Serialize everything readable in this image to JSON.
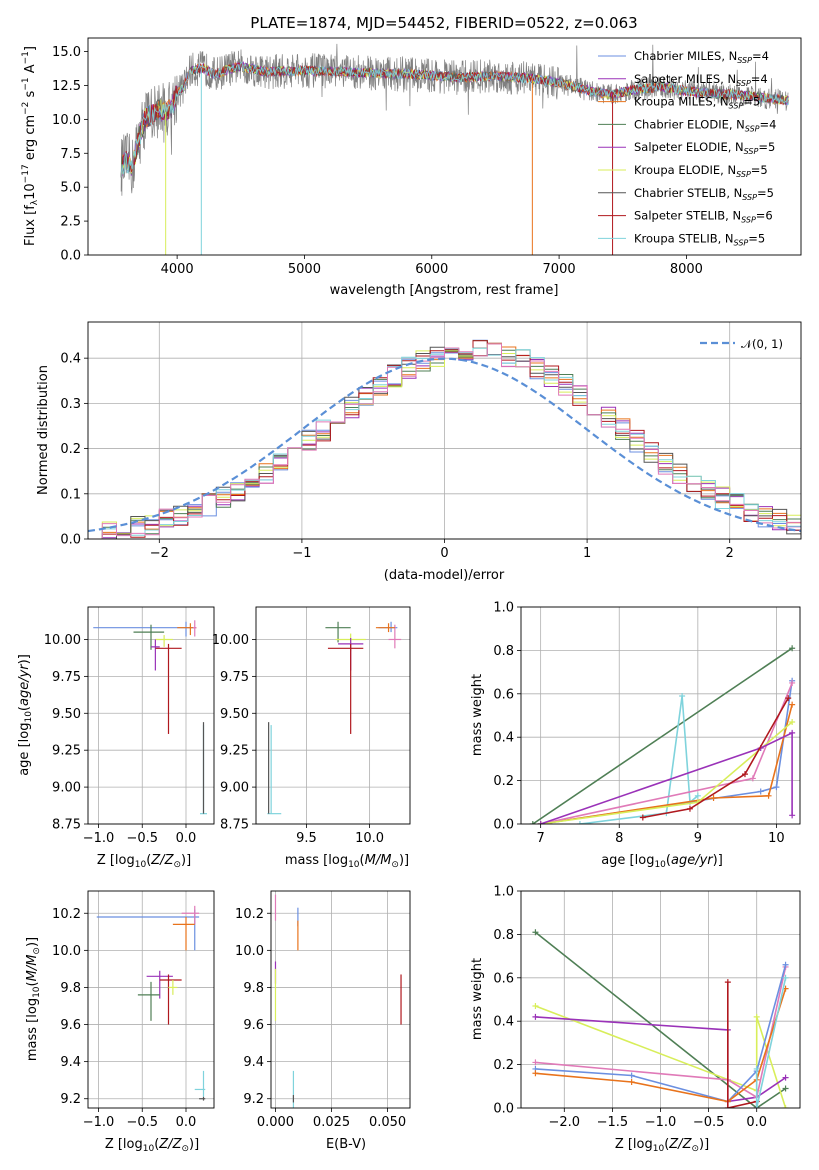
{
  "figure": {
    "title": "PLATE=1874, MJD=54452, FIBERID=0522, z=0.063"
  },
  "colors": {
    "chab_miles": "#6b8fe0",
    "salp_miles": "#9a32b8",
    "krou_miles": "#e8731c",
    "chab_elod": "#4f7f55",
    "salp_elod": "#9a32b8",
    "krou_elod": "#d8ee5a",
    "chab_stel": "#555555",
    "salp_stel": "#b0181e",
    "krou_stel": "#7fd3dc",
    "pink": "#e07ab8",
    "data": "#808080",
    "normal": "#5a8fd6"
  },
  "legend_spectrum": [
    {
      "label": "Chabrier MILES, N",
      "sub": "SSP",
      "suffix": "=4",
      "color_key": "chab_miles"
    },
    {
      "label": "Salpeter MILES, N",
      "sub": "SSP",
      "suffix": "=4",
      "color_key": "salp_miles"
    },
    {
      "label": "Kroupa MILES, N",
      "sub": "SSP",
      "suffix": "=5",
      "color_key": "krou_miles"
    },
    {
      "label": "Chabrier ELODIE, N",
      "sub": "SSP",
      "suffix": "=4",
      "color_key": "chab_elod"
    },
    {
      "label": "Salpeter ELODIE, N",
      "sub": "SSP",
      "suffix": "=5",
      "color_key": "salp_elod"
    },
    {
      "label": "Kroupa ELODIE, N",
      "sub": "SSP",
      "suffix": "=5",
      "color_key": "krou_elod"
    },
    {
      "label": "Chabrier STELIB, N",
      "sub": "SSP",
      "suffix": "=5",
      "color_key": "chab_stel"
    },
    {
      "label": "Salpeter STELIB, N",
      "sub": "SSP",
      "suffix": "=6",
      "color_key": "salp_stel"
    },
    {
      "label": "Kroupa STELIB, N",
      "sub": "SSP",
      "suffix": "=5",
      "color_key": "krou_stel"
    }
  ],
  "legend_hist": {
    "label": "𝒩(0, 1)",
    "color_key": "normal"
  },
  "chart_data": [
    {
      "id": "spectrum",
      "type": "line",
      "xlabel": "wavelength [Angstrom, rest frame]",
      "ylabel": "Flux [f_λ10^-17 erg cm^-2 s^-1 A^-1]",
      "xlim": [
        3300,
        8900
      ],
      "ylim": [
        0,
        16
      ],
      "xticks": [
        4000,
        5000,
        6000,
        7000,
        8000
      ],
      "yticks": [
        0.0,
        2.5,
        5.0,
        7.5,
        10.0,
        12.5,
        15.0
      ],
      "grid": false,
      "legend": "top-right",
      "continuum": {
        "x": [
          3560,
          3600,
          3650,
          3700,
          3750,
          3800,
          3850,
          3900,
          3950,
          4000,
          4050,
          4100,
          4200,
          4300,
          4400,
          4500,
          4700,
          5000,
          5300,
          5600,
          5900,
          6200,
          6500,
          6800,
          7000,
          7200,
          7400,
          7600,
          7800,
          8000,
          8200,
          8400,
          8600,
          8800
        ],
        "y": [
          6.5,
          6.9,
          6.5,
          8.6,
          10.1,
          10.3,
          10.8,
          10.5,
          10.8,
          12.0,
          12.3,
          13.6,
          13.8,
          13.3,
          13.7,
          13.9,
          13.5,
          13.6,
          13.5,
          13.4,
          13.3,
          13.1,
          13.2,
          13.0,
          12.7,
          12.2,
          11.8,
          12.2,
          12.4,
          12.1,
          11.9,
          11.8,
          11.6,
          11.4
        ]
      },
      "dips": [
        {
          "x": 3910,
          "ymin": 0,
          "series": "krou_elod"
        },
        {
          "x": 4190,
          "ymin": 0,
          "series": "krou_stel"
        },
        {
          "x": 6790,
          "ymin": 0,
          "series": "krou_miles"
        },
        {
          "x": 7420,
          "ymin": 0,
          "series": "salp_stel"
        }
      ]
    },
    {
      "id": "residuals",
      "type": "histogram",
      "xlabel": "(data-model)/error",
      "ylabel": "Normed distribution",
      "xlim": [
        -2.5,
        2.5
      ],
      "ylim": [
        0,
        0.48
      ],
      "xticks": [
        -2,
        -1,
        0,
        1,
        2
      ],
      "yticks": [
        0.0,
        0.1,
        0.2,
        0.3,
        0.4
      ],
      "grid": true,
      "legend": "top-right",
      "bin_start": -2.5,
      "bin_width": 0.1,
      "normal": {
        "mean": 0,
        "sigma": 1
      }
    },
    {
      "id": "age_vs_Z",
      "type": "errorbar",
      "xlabel": "Z [log10(Z/Z⊙)]",
      "ylabel": "age  [log10(age/yr)]",
      "xlim": [
        -1.12,
        0.32
      ],
      "ylim": [
        8.75,
        10.22
      ],
      "xticks": [
        -1.0,
        -0.5,
        0.0
      ],
      "yticks": [
        8.75,
        9.0,
        9.25,
        9.5,
        9.75,
        10.0
      ],
      "grid": true,
      "points": [
        {
          "series": "chab_miles",
          "x": 0.0,
          "xerr": [
            1.06,
            0.1
          ],
          "y": 10.08,
          "yerr": [
            0.06,
            0.04
          ]
        },
        {
          "series": "chab_elod",
          "x": -0.4,
          "xerr": [
            0.2,
            0.15
          ],
          "y": 10.05,
          "yerr": [
            0.12,
            0.05
          ]
        },
        {
          "series": "krou_miles",
          "x": 0.05,
          "xerr": [
            0.15,
            0.07
          ],
          "y": 10.08,
          "yerr": [
            0.05,
            0.03
          ]
        },
        {
          "series": "pink",
          "x": 0.1,
          "xerr": [
            0.02,
            0.02
          ],
          "y": 10.08,
          "yerr": [
            0.06,
            0.05
          ]
        },
        {
          "series": "krou_elod",
          "x": -0.25,
          "xerr": [
            0.1,
            0.1
          ],
          "y": 10.0,
          "yerr": [
            0.05,
            0.03
          ]
        },
        {
          "series": "salp_miles",
          "x": -0.35,
          "xerr": [
            0.05,
            0.05
          ],
          "y": 9.95,
          "yerr": [
            0.16,
            0.05
          ]
        },
        {
          "series": "salp_stel",
          "x": -0.2,
          "xerr": [
            0.15,
            0.15
          ],
          "y": 9.94,
          "yerr": [
            0.58,
            0.03
          ]
        },
        {
          "series": "krou_stel",
          "x": 0.2,
          "xerr": [
            0.04,
            0.04
          ],
          "y": 8.82,
          "yerr": [
            0.0,
            0.6
          ]
        },
        {
          "series": "chab_stel",
          "x": 0.2,
          "xerr": [
            0.0,
            0.0
          ],
          "y": 8.82,
          "yerr": [
            0.0,
            0.62
          ]
        }
      ]
    },
    {
      "id": "age_vs_mass",
      "type": "errorbar",
      "xlabel": "mass [log10(M/M⊙)]",
      "ylabel": "",
      "xlim": [
        9.1,
        10.32
      ],
      "ylim": [
        8.75,
        10.22
      ],
      "xticks": [
        9.5,
        10.0
      ],
      "yticks": [
        8.75,
        9.0,
        9.25,
        9.5,
        9.75,
        10.0
      ],
      "grid": true,
      "points": [
        {
          "series": "chab_miles",
          "x": 10.17,
          "xerr": [
            0.1,
            0.05
          ],
          "y": 10.08,
          "yerr": [
            0.03,
            0.04
          ]
        },
        {
          "series": "pink",
          "x": 10.2,
          "xerr": [
            0.05,
            0.05
          ],
          "y": 10.0,
          "yerr": [
            0.06,
            0.1
          ]
        },
        {
          "series": "krou_miles",
          "x": 10.15,
          "xerr": [
            0.1,
            0.05
          ],
          "y": 10.08,
          "yerr": [
            0.03,
            0.03
          ]
        },
        {
          "series": "chab_elod",
          "x": 9.75,
          "xerr": [
            0.1,
            0.1
          ],
          "y": 10.08,
          "yerr": [
            0.1,
            0.04
          ]
        },
        {
          "series": "krou_elod",
          "x": 9.85,
          "xerr": [
            0.12,
            0.12
          ],
          "y": 10.0,
          "yerr": [
            0.08,
            0.04
          ]
        },
        {
          "series": "salp_miles",
          "x": 9.85,
          "xerr": [
            0.1,
            0.1
          ],
          "y": 9.97,
          "yerr": [
            0.18,
            0.04
          ]
        },
        {
          "series": "salp_stel",
          "x": 9.85,
          "xerr": [
            0.18,
            0.1
          ],
          "y": 9.94,
          "yerr": [
            0.58,
            0.03
          ]
        },
        {
          "series": "krou_stel",
          "x": 9.22,
          "xerr": [
            0.03,
            0.08
          ],
          "y": 8.82,
          "yerr": [
            0.0,
            0.6
          ]
        },
        {
          "series": "chab_stel",
          "x": 9.2,
          "xerr": [
            0.0,
            0.0
          ],
          "y": 8.82,
          "yerr": [
            0.0,
            0.62
          ]
        }
      ]
    },
    {
      "id": "weight_vs_age",
      "type": "line",
      "xlabel": "age  [log10(age/yr)]",
      "ylabel": "mass weight",
      "xlim": [
        6.75,
        10.3
      ],
      "ylim": [
        0,
        1.0
      ],
      "xticks": [
        7,
        8,
        9,
        10
      ],
      "yticks": [
        0.0,
        0.2,
        0.4,
        0.6,
        0.8,
        1.0
      ],
      "grid": true,
      "series": [
        {
          "key": "chab_elod",
          "x": [
            6.9,
            10.2
          ],
          "y": [
            0.0,
            0.81
          ]
        },
        {
          "key": "krou_stel",
          "x": [
            7.5,
            8.6,
            8.8,
            8.9,
            9.0
          ],
          "y": [
            0.0,
            0.05,
            0.59,
            0.1,
            0.13
          ]
        },
        {
          "key": "chab_miles",
          "x": [
            7.0,
            9.8,
            10.0,
            10.2
          ],
          "y": [
            0.0,
            0.15,
            0.17,
            0.66
          ]
        },
        {
          "key": "krou_miles",
          "x": [
            7.0,
            9.2,
            9.9,
            10.2
          ],
          "y": [
            0.0,
            0.12,
            0.13,
            0.55
          ]
        },
        {
          "key": "pink",
          "x": [
            7.0,
            9.7,
            10.2
          ],
          "y": [
            0.0,
            0.21,
            0.65
          ]
        },
        {
          "key": "krou_elod",
          "x": [
            7.0,
            9.0,
            10.2
          ],
          "y": [
            0.0,
            0.1,
            0.47
          ]
        },
        {
          "key": "salp_miles",
          "x": [
            7.0,
            9.8,
            10.2,
            10.2
          ],
          "y": [
            0.0,
            0.35,
            0.42,
            0.04
          ]
        },
        {
          "key": "salp_stel",
          "x": [
            8.3,
            8.9,
            9.6,
            10.15
          ],
          "y": [
            0.03,
            0.07,
            0.23,
            0.58
          ]
        }
      ]
    },
    {
      "id": "mass_vs_Z",
      "type": "errorbar",
      "xlabel": "Z [log10(Z/Z⊙)]",
      "ylabel": "mass [log10(M/M⊙)]",
      "xlim": [
        -1.12,
        0.32
      ],
      "ylim": [
        9.15,
        10.32
      ],
      "xticks": [
        -1.0,
        -0.5,
        0.0
      ],
      "yticks": [
        9.2,
        9.4,
        9.6,
        9.8,
        10.0,
        10.2
      ],
      "grid": true,
      "points": [
        {
          "series": "chab_miles",
          "x": 0.1,
          "xerr": [
            1.12,
            0.05
          ],
          "y": 10.18,
          "yerr": [
            0.18,
            0.04
          ]
        },
        {
          "series": "pink",
          "x": 0.1,
          "xerr": [
            0.15,
            0.05
          ],
          "y": 10.2,
          "yerr": [
            0.06,
            0.04
          ]
        },
        {
          "series": "krou_miles",
          "x": 0.0,
          "xerr": [
            0.15,
            0.1
          ],
          "y": 10.14,
          "yerr": [
            0.14,
            0.04
          ]
        },
        {
          "series": "salp_miles",
          "x": -0.3,
          "xerr": [
            0.15,
            0.15
          ],
          "y": 9.86,
          "yerr": [
            0.12,
            0.03
          ]
        },
        {
          "series": "chab_elod",
          "x": -0.4,
          "xerr": [
            0.15,
            0.1
          ],
          "y": 9.76,
          "yerr": [
            0.14,
            0.07
          ]
        },
        {
          "series": "salp_stel",
          "x": -0.2,
          "xerr": [
            0.1,
            0.15
          ],
          "y": 9.84,
          "yerr": [
            0.24,
            0.03
          ]
        },
        {
          "series": "krou_elod",
          "x": -0.15,
          "xerr": [
            0.05,
            0.05
          ],
          "y": 9.8,
          "yerr": [
            0.04,
            0.04
          ]
        },
        {
          "series": "krou_stel",
          "x": 0.2,
          "xerr": [
            0.1,
            0.02
          ],
          "y": 9.25,
          "yerr": [
            0.04,
            0.1
          ]
        },
        {
          "series": "chab_stel",
          "x": 0.2,
          "xerr": [
            0.05,
            0.02
          ],
          "y": 9.2,
          "yerr": [
            0.01,
            0.01
          ]
        }
      ]
    },
    {
      "id": "mass_vs_ebv",
      "type": "errorbar",
      "xlabel": "E(B-V)",
      "ylabel": "",
      "xlim": [
        -0.002,
        0.06
      ],
      "ylim": [
        9.15,
        10.32
      ],
      "xticks": [
        0.0,
        0.025,
        0.05
      ],
      "yticks": [
        9.2,
        9.4,
        9.6,
        9.8,
        10.0,
        10.2
      ],
      "grid": true,
      "points": [
        {
          "series": "chab_miles",
          "x": 0.01,
          "xerr": [
            0,
            0
          ],
          "y": 10.15,
          "yerr": [
            0.02,
            0.08
          ]
        },
        {
          "series": "krou_miles",
          "x": 0.01,
          "xerr": [
            0,
            0
          ],
          "y": 10.1,
          "yerr": [
            0.1,
            0.06
          ]
        },
        {
          "series": "pink",
          "x": 0.0,
          "xerr": [
            0,
            0
          ],
          "y": 10.22,
          "yerr": [
            0.06,
            0.08
          ]
        },
        {
          "series": "salp_miles",
          "x": 0.0,
          "xerr": [
            0,
            0
          ],
          "y": 9.86,
          "yerr": [
            0.04,
            0.08
          ]
        },
        {
          "series": "krou_elod",
          "x": 0.0,
          "xerr": [
            0,
            0
          ],
          "y": 9.8,
          "yerr": [
            0.18,
            0.1
          ]
        },
        {
          "series": "salp_stel",
          "x": 0.056,
          "xerr": [
            0,
            0
          ],
          "y": 9.75,
          "yerr": [
            0.15,
            0.12
          ]
        },
        {
          "series": "krou_stel",
          "x": 0.008,
          "xerr": [
            0,
            0
          ],
          "y": 9.25,
          "yerr": [
            0.1,
            0.1
          ]
        },
        {
          "series": "chab_stel",
          "x": 0.008,
          "xerr": [
            0,
            0
          ],
          "y": 9.2,
          "yerr": [
            0.02,
            0.02
          ]
        }
      ]
    },
    {
      "id": "weight_vs_Z",
      "type": "line",
      "xlabel": "Z [log10(Z/Z⊙)]",
      "ylabel": "mass weight",
      "xlim": [
        -2.45,
        0.45
      ],
      "ylim": [
        0,
        1.0
      ],
      "xticks": [
        -2.0,
        -1.5,
        -1.0,
        -0.5,
        0.0
      ],
      "yticks": [
        0.0,
        0.2,
        0.4,
        0.6,
        0.8,
        1.0
      ],
      "grid": true,
      "series": [
        {
          "key": "chab_elod",
          "x": [
            -2.3,
            0.0,
            0.3
          ],
          "y": [
            0.81,
            0.0,
            0.09
          ]
        },
        {
          "key": "krou_elod",
          "x": [
            -2.3,
            0.0,
            0.0,
            0.3
          ],
          "y": [
            0.47,
            0.08,
            0.42,
            0.0
          ]
        },
        {
          "key": "salp_miles",
          "x": [
            -2.3,
            -0.3,
            -0.3,
            0.0,
            0.3
          ],
          "y": [
            0.42,
            0.36,
            0.03,
            0.05,
            0.14
          ]
        },
        {
          "key": "pink",
          "x": [
            -2.3,
            -0.3,
            0.0,
            0.3
          ],
          "y": [
            0.21,
            0.13,
            0.05,
            0.65
          ]
        },
        {
          "key": "chab_miles",
          "x": [
            -2.3,
            -1.3,
            -0.3,
            0.0,
            0.3
          ],
          "y": [
            0.18,
            0.15,
            0.03,
            0.17,
            0.66
          ]
        },
        {
          "key": "krou_miles",
          "x": [
            -2.3,
            -1.3,
            -0.3,
            0.0,
            0.3
          ],
          "y": [
            0.16,
            0.12,
            0.03,
            0.13,
            0.55
          ]
        },
        {
          "key": "salp_stel",
          "x": [
            -0.3,
            -0.3,
            0.0,
            0.0
          ],
          "y": [
            0.58,
            0.0,
            0.03,
            0.0
          ]
        },
        {
          "key": "krou_stel",
          "x": [
            0.0,
            0.0,
            0.3
          ],
          "y": [
            0.18,
            0.0,
            0.6
          ]
        }
      ]
    }
  ]
}
